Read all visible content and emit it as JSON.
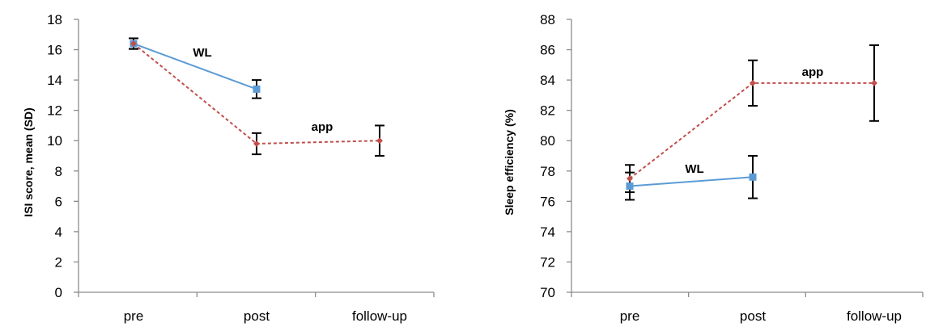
{
  "chart_data": [
    {
      "type": "line",
      "title": "",
      "ylabel": "ISI score, mean (SD)",
      "xlabel": "",
      "categories": [
        "pre",
        "post",
        "follow-up"
      ],
      "ylim": [
        0,
        18
      ],
      "yticks": [
        0,
        2,
        4,
        6,
        8,
        10,
        12,
        14,
        16,
        18
      ],
      "grid": false,
      "series": [
        {
          "name": "WL",
          "color": "#5b9bd5",
          "line_style": "solid",
          "marker": "square",
          "values": [
            16.4,
            13.4,
            null
          ],
          "error": [
            0.35,
            0.6,
            null
          ]
        },
        {
          "name": "app",
          "color": "#c0504d",
          "line_style": "dashed",
          "marker": "diamond",
          "values": [
            16.4,
            9.8,
            10.0
          ],
          "error": [
            0.35,
            0.7,
            1.0
          ]
        }
      ]
    },
    {
      "type": "line",
      "title": "",
      "ylabel": "Sleep efficiency (%)",
      "xlabel": "",
      "categories": [
        "pre",
        "post",
        "follow-up"
      ],
      "ylim": [
        70,
        88
      ],
      "yticks": [
        70,
        72,
        74,
        76,
        78,
        80,
        82,
        84,
        86,
        88
      ],
      "grid": false,
      "series": [
        {
          "name": "WL",
          "color": "#5b9bd5",
          "line_style": "solid",
          "marker": "square",
          "values": [
            77.0,
            77.6,
            null
          ],
          "error": [
            0.9,
            1.4,
            null
          ]
        },
        {
          "name": "app",
          "color": "#c0504d",
          "line_style": "dashed",
          "marker": "diamond",
          "values": [
            77.5,
            83.8,
            83.8
          ],
          "error": [
            0.9,
            1.5,
            2.5
          ]
        }
      ]
    }
  ]
}
